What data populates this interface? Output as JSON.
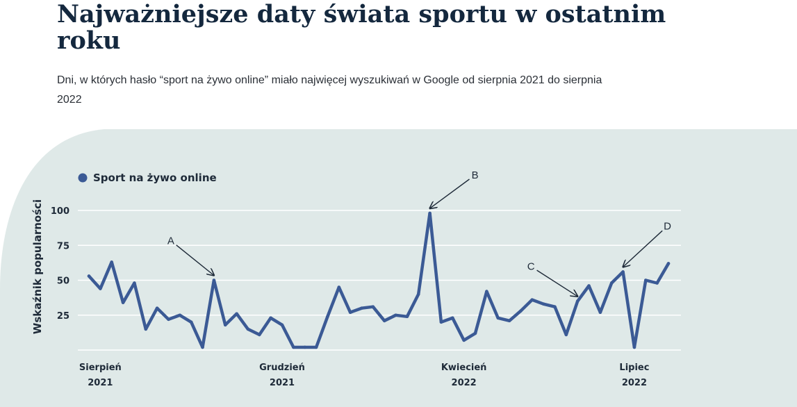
{
  "title": "Najważniejsze daty świata sportu w ostatnim roku",
  "subtitle": "Dni, w których hasło “sport na żywo online” miało najwięcej wyszukiwań w Google od sierpnia 2021 do sierpnia 2022",
  "colors": {
    "line": "#3b5a95",
    "panel": "#dfe9e8",
    "grid": "#ffffff",
    "text": "#1e2a38",
    "title": "#14283e"
  },
  "chart_data": {
    "type": "line",
    "ylabel": "Wskaźnik popularności",
    "ylim": [
      0,
      100
    ],
    "yticks": [
      25,
      50,
      75,
      100
    ],
    "xlim": [
      0,
      52
    ],
    "grid": true,
    "legend_position": "top-left",
    "x_ticks": [
      {
        "pos": 1,
        "month": "Sierpień",
        "year": "2021"
      },
      {
        "pos": 17,
        "month": "Grudzień",
        "year": "2021"
      },
      {
        "pos": 33,
        "month": "Kwiecień",
        "year": "2022"
      },
      {
        "pos": 48,
        "month": "Lipiec",
        "year": "2022"
      }
    ],
    "series": [
      {
        "name": "Sport na żywo online",
        "values": [
          53,
          44,
          63,
          34,
          48,
          15,
          30,
          22,
          25,
          20,
          2,
          50,
          18,
          26,
          15,
          11,
          23,
          18,
          2,
          2,
          2,
          24,
          45,
          27,
          30,
          31,
          21,
          25,
          24,
          40,
          98,
          20,
          23,
          7,
          12,
          42,
          23,
          21,
          28,
          36,
          33,
          31,
          11,
          35,
          46,
          27,
          48,
          56,
          2,
          50,
          48,
          62
        ]
      }
    ],
    "annotations": [
      {
        "label": "A",
        "index": 11
      },
      {
        "label": "B",
        "index": 30
      },
      {
        "label": "C",
        "index": 43
      },
      {
        "label": "D",
        "index": 47
      }
    ]
  }
}
